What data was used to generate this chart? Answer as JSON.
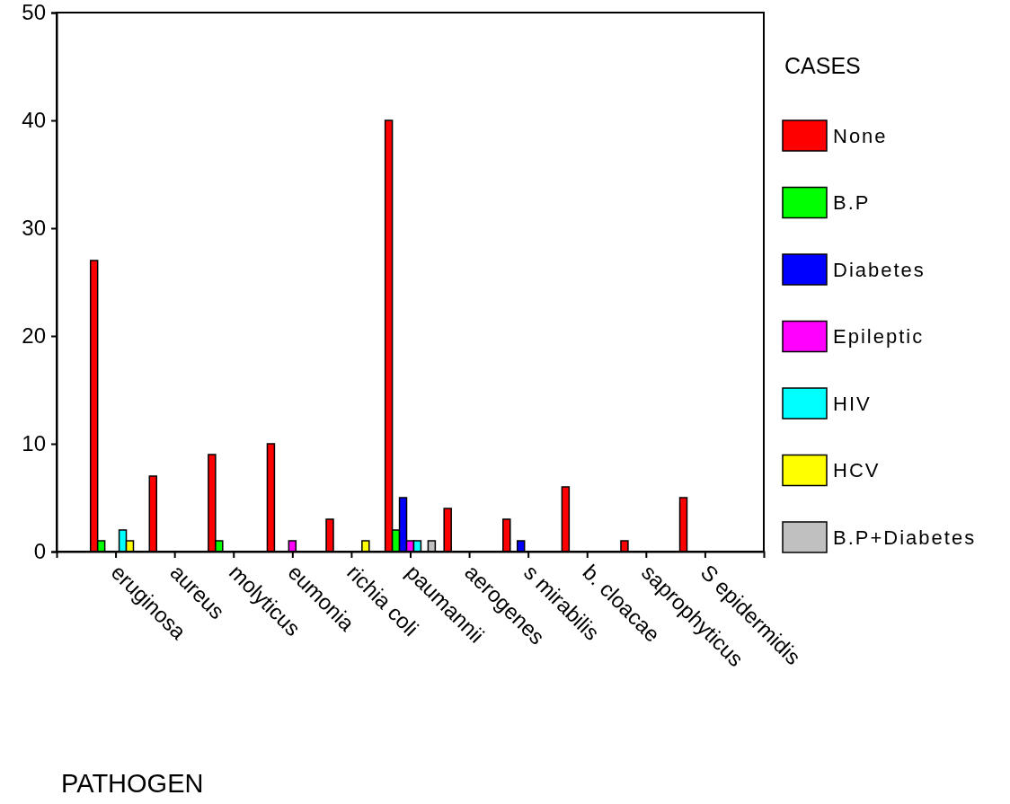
{
  "chart_data": {
    "type": "bar",
    "xlabel": "PATHOGEN",
    "legend_title": "CASES",
    "legend": "right",
    "categories": [
      "eruginosa",
      "aureus",
      "molyticus",
      "eumonia",
      "richia coli",
      "paumannii",
      "aerogenes",
      "s mirabilis",
      "b. cloacae",
      "saprophyticus",
      "S epidermidis"
    ],
    "series": [
      {
        "name": "None",
        "color": "#ff0000",
        "values": [
          27,
          7,
          9,
          10,
          3,
          40,
          4,
          3,
          6,
          1,
          5
        ]
      },
      {
        "name": "B.P",
        "color": "#00ff00",
        "values": [
          1,
          null,
          1,
          null,
          null,
          2,
          null,
          null,
          null,
          null,
          null
        ]
      },
      {
        "name": "Diabetes",
        "color": "#0000ff",
        "values": [
          null,
          null,
          null,
          null,
          null,
          5,
          null,
          1,
          null,
          null,
          null
        ]
      },
      {
        "name": "Epileptic",
        "color": "#ff00ff",
        "values": [
          null,
          null,
          null,
          1,
          null,
          1,
          null,
          null,
          null,
          null,
          null
        ]
      },
      {
        "name": "HIV",
        "color": "#00ffff",
        "values": [
          2,
          null,
          null,
          null,
          null,
          1,
          null,
          null,
          null,
          null,
          null
        ]
      },
      {
        "name": "HCV",
        "color": "#ffff00",
        "values": [
          1,
          null,
          null,
          null,
          1,
          null,
          null,
          null,
          null,
          null,
          null
        ]
      },
      {
        "name": "B.P+Diabetes",
        "color": "#c0c0c0",
        "values": [
          null,
          null,
          null,
          null,
          null,
          1,
          null,
          null,
          null,
          null,
          null
        ]
      }
    ],
    "ylim": [
      0,
      50
    ],
    "yticks": [
      0,
      10,
      20,
      30,
      40,
      50
    ]
  }
}
